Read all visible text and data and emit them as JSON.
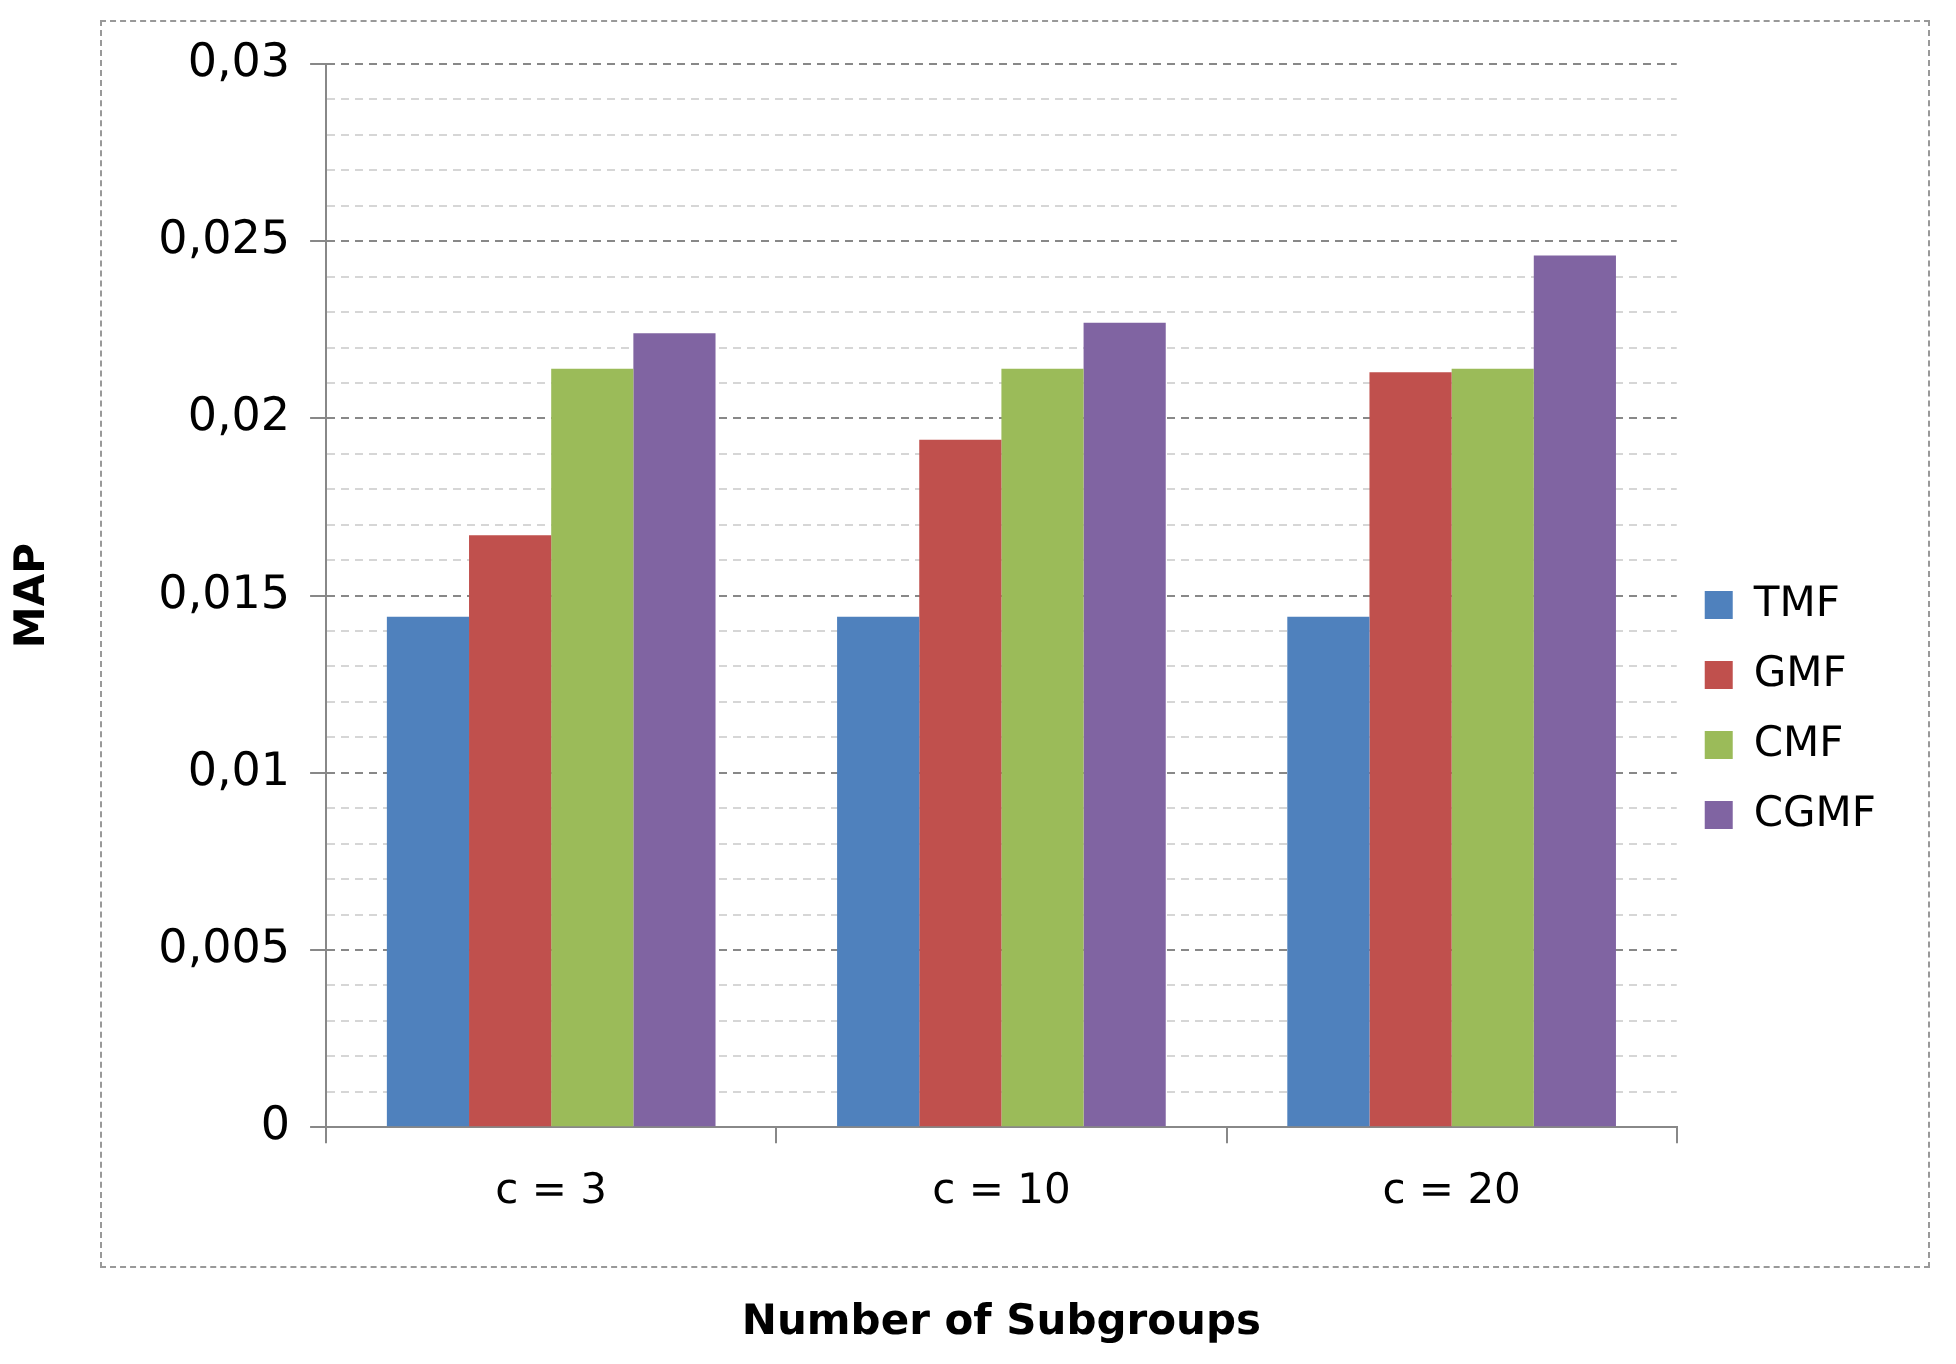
{
  "chart_data": {
    "type": "bar",
    "xlabel": "Number of Subgroups",
    "ylabel": "MAP",
    "categories": [
      "c = 3",
      "c = 10",
      "c = 20"
    ],
    "series": [
      {
        "name": "TMF",
        "color": "#4f81bd",
        "values": [
          0.0144,
          0.0144,
          0.0144
        ]
      },
      {
        "name": "GMF",
        "color": "#c0504d",
        "values": [
          0.0167,
          0.0194,
          0.0213
        ]
      },
      {
        "name": "CMF",
        "color": "#9bbb59",
        "values": [
          0.0214,
          0.0214,
          0.0214
        ]
      },
      {
        "name": "CGMF",
        "color": "#8064a2",
        "values": [
          0.0224,
          0.0227,
          0.0246
        ]
      }
    ],
    "ylim": [
      0,
      0.03
    ],
    "yticks": [
      {
        "value": 0,
        "label": "0"
      },
      {
        "value": 0.001,
        "label": null
      },
      {
        "value": 0.002,
        "label": null
      },
      {
        "value": 0.003,
        "label": null
      },
      {
        "value": 0.004,
        "label": null
      },
      {
        "value": 0.005,
        "label": "0,005"
      },
      {
        "value": 0.006,
        "label": null
      },
      {
        "value": 0.007,
        "label": null
      },
      {
        "value": 0.008,
        "label": null
      },
      {
        "value": 0.009,
        "label": null
      },
      {
        "value": 0.01,
        "label": "0,01"
      },
      {
        "value": 0.011,
        "label": null
      },
      {
        "value": 0.012,
        "label": null
      },
      {
        "value": 0.013,
        "label": null
      },
      {
        "value": 0.014,
        "label": null
      },
      {
        "value": 0.015,
        "label": "0,015"
      },
      {
        "value": 0.016,
        "label": null
      },
      {
        "value": 0.017,
        "label": null
      },
      {
        "value": 0.018,
        "label": null
      },
      {
        "value": 0.019,
        "label": null
      },
      {
        "value": 0.02,
        "label": "0,02"
      },
      {
        "value": 0.021,
        "label": null
      },
      {
        "value": 0.022,
        "label": null
      },
      {
        "value": 0.023,
        "label": null
      },
      {
        "value": 0.024,
        "label": null
      },
      {
        "value": 0.025,
        "label": "0,025"
      },
      {
        "value": 0.026,
        "label": null
      },
      {
        "value": 0.027,
        "label": null
      },
      {
        "value": 0.028,
        "label": null
      },
      {
        "value": 0.029,
        "label": null
      },
      {
        "value": 0.03,
        "label": "0,03"
      }
    ],
    "grid": "y",
    "legend": "right"
  }
}
